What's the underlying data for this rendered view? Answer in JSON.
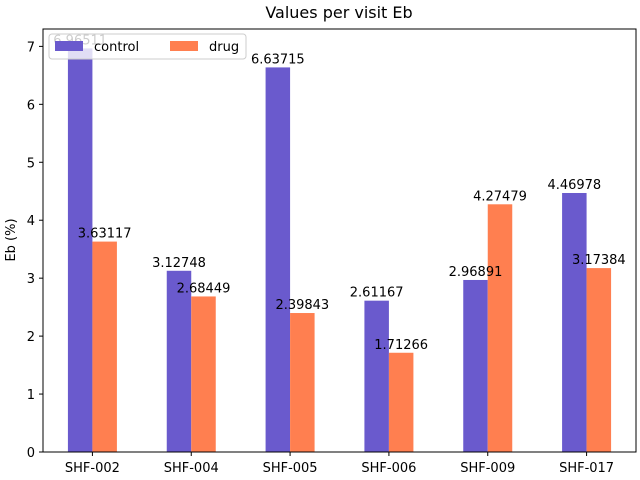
{
  "chart_data": {
    "type": "bar",
    "title": "Values per visit Eb",
    "xlabel": "",
    "ylabel": "Eb (%)",
    "ylim": [
      0,
      7.3
    ],
    "yticks": [
      0,
      1,
      2,
      3,
      4,
      5,
      6,
      7
    ],
    "categories": [
      "SHF-002",
      "SHF-004",
      "SHF-005",
      "SHF-006",
      "SHF-009",
      "SHF-017"
    ],
    "series": [
      {
        "name": "control",
        "color": "#6a5acd",
        "values": [
          6.96511,
          3.12748,
          6.63715,
          2.61167,
          2.96891,
          4.46978
        ],
        "labels": [
          "6.96511",
          "3.12748",
          "6.63715",
          "2.61167",
          "2.96891",
          "4.46978"
        ]
      },
      {
        "name": "drug",
        "color": "#ff7f50",
        "values": [
          3.63117,
          2.68449,
          2.39843,
          1.71266,
          4.27479,
          3.17384
        ],
        "labels": [
          "3.63117",
          "2.68449",
          "2.39843",
          "1.71266",
          "4.27479",
          "3.17384"
        ]
      }
    ],
    "legend_position": "top-left",
    "grid": false
  }
}
